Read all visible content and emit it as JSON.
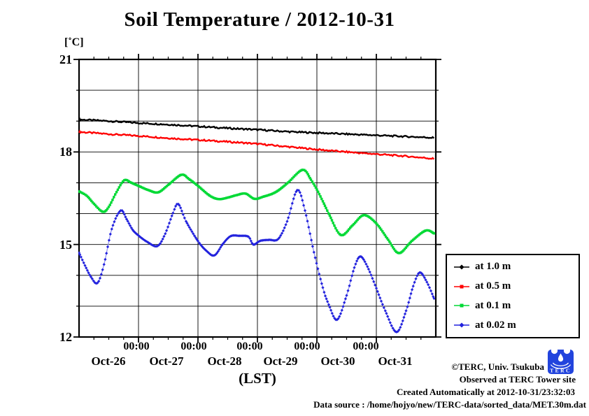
{
  "title": "Soil Temperature / 2012-10-31",
  "y_axis_unit": "[˚C]",
  "x_axis_label": "(LST)",
  "axes": {
    "y_ticks": [
      "21",
      "18",
      "15",
      "12"
    ],
    "x_time_ticks": [
      "00:00",
      "00:00",
      "00:00",
      "00:00",
      "00:00"
    ],
    "x_date_ticks": [
      "Oct-26",
      "Oct-27",
      "Oct-28",
      "Oct-29",
      "Oct-30",
      "Oct-31"
    ]
  },
  "legend": {
    "items": [
      {
        "label": "at 1.0 m",
        "color": "#000000",
        "marker": "diamond"
      },
      {
        "label": "at 0.5 m",
        "color": "#ff0000",
        "marker": "square"
      },
      {
        "label": "at 0.1 m",
        "color": "#00d935",
        "marker": "square"
      },
      {
        "label": "at 0.02 m",
        "color": "#2222dd",
        "marker": "diamond"
      }
    ]
  },
  "footer": {
    "copyright": "©TERC, Univ. Tsukuba",
    "observed": "Observed at TERC Tower site",
    "created": "Created Automatically at 2012-10-31/23:32:03",
    "datasource": "Data source : /home/hojyo/new/TERC-data/sorted_data/MET.30m.dat"
  },
  "logo": {
    "text": "TERC",
    "color": "#2244dd"
  },
  "chart_data": {
    "type": "line",
    "title": "Soil Temperature / 2012-10-31",
    "xlabel": "(LST)",
    "ylabel": "[˚C]",
    "x_unit": "days since 2012-10-26 00:00 LST",
    "xlim": [
      0,
      6
    ],
    "ylim": [
      12,
      21
    ],
    "y_major_ticks": [
      12,
      15,
      18,
      21
    ],
    "y_gridline_step_degC": 1,
    "x_gridlines_at_midnights": [
      1,
      2,
      3,
      4,
      5
    ],
    "x_minor_tick_hours": 6,
    "grid": true,
    "legend_position": "right-outside",
    "series": [
      {
        "name": "at 1.0 m",
        "color": "#000000",
        "marker": "diamond",
        "line": "thick",
        "points": [
          [
            0,
            19.05
          ],
          [
            0.5,
            19.0
          ],
          [
            1,
            18.94
          ],
          [
            1.5,
            18.89
          ],
          [
            2,
            18.83
          ],
          [
            2.5,
            18.77
          ],
          [
            3,
            18.72
          ],
          [
            3.5,
            18.66
          ],
          [
            4,
            18.62
          ],
          [
            4.5,
            18.58
          ],
          [
            5,
            18.54
          ],
          [
            5.5,
            18.5
          ],
          [
            5.97,
            18.46
          ]
        ]
      },
      {
        "name": "at 0.5 m",
        "color": "#ff0000",
        "marker": "square",
        "line": "thick",
        "points": [
          [
            0,
            18.65
          ],
          [
            0.5,
            18.58
          ],
          [
            1,
            18.52
          ],
          [
            1.5,
            18.45
          ],
          [
            2,
            18.39
          ],
          [
            2.5,
            18.33
          ],
          [
            3,
            18.26
          ],
          [
            3.5,
            18.17
          ],
          [
            4,
            18.08
          ],
          [
            4.5,
            18.0
          ],
          [
            5,
            17.93
          ],
          [
            5.5,
            17.86
          ],
          [
            5.97,
            17.78
          ]
        ]
      },
      {
        "name": "at 0.1 m",
        "color": "#00d935",
        "marker": "square",
        "line": "squares",
        "points": [
          [
            0,
            16.72
          ],
          [
            0.13,
            16.58
          ],
          [
            0.25,
            16.32
          ],
          [
            0.4,
            16.06
          ],
          [
            0.5,
            16.22
          ],
          [
            0.63,
            16.7
          ],
          [
            0.76,
            17.08
          ],
          [
            0.88,
            17.0
          ],
          [
            1.0,
            16.9
          ],
          [
            1.17,
            16.76
          ],
          [
            1.33,
            16.69
          ],
          [
            1.5,
            16.93
          ],
          [
            1.72,
            17.26
          ],
          [
            1.85,
            17.12
          ],
          [
            2.0,
            16.9
          ],
          [
            2.2,
            16.58
          ],
          [
            2.35,
            16.47
          ],
          [
            2.5,
            16.52
          ],
          [
            2.65,
            16.6
          ],
          [
            2.8,
            16.65
          ],
          [
            2.95,
            16.48
          ],
          [
            3.1,
            16.55
          ],
          [
            3.3,
            16.69
          ],
          [
            3.5,
            16.98
          ],
          [
            3.76,
            17.42
          ],
          [
            3.9,
            17.1
          ],
          [
            4.0,
            16.78
          ],
          [
            4.1,
            16.4
          ],
          [
            4.2,
            16.0
          ],
          [
            4.4,
            15.31
          ],
          [
            4.6,
            15.62
          ],
          [
            4.79,
            15.95
          ],
          [
            5.0,
            15.68
          ],
          [
            5.2,
            15.15
          ],
          [
            5.38,
            14.72
          ],
          [
            5.6,
            15.12
          ],
          [
            5.83,
            15.45
          ],
          [
            5.97,
            15.36
          ]
        ]
      },
      {
        "name": "at 0.02 m",
        "color": "#2222dd",
        "marker": "diamond",
        "line": "thin-light",
        "line_color": "#9393f0",
        "points": [
          [
            0,
            14.73
          ],
          [
            0.1,
            14.32
          ],
          [
            0.2,
            13.95
          ],
          [
            0.31,
            13.75
          ],
          [
            0.42,
            14.35
          ],
          [
            0.55,
            15.5
          ],
          [
            0.7,
            16.1
          ],
          [
            0.8,
            15.82
          ],
          [
            0.9,
            15.48
          ],
          [
            1.0,
            15.29
          ],
          [
            1.15,
            15.08
          ],
          [
            1.32,
            14.95
          ],
          [
            1.45,
            15.35
          ],
          [
            1.58,
            16.02
          ],
          [
            1.67,
            16.31
          ],
          [
            1.8,
            15.75
          ],
          [
            2.0,
            15.11
          ],
          [
            2.15,
            14.78
          ],
          [
            2.28,
            14.65
          ],
          [
            2.42,
            15.02
          ],
          [
            2.55,
            15.27
          ],
          [
            2.7,
            15.28
          ],
          [
            2.85,
            15.25
          ],
          [
            2.93,
            15.0
          ],
          [
            3.05,
            15.12
          ],
          [
            3.2,
            15.15
          ],
          [
            3.35,
            15.18
          ],
          [
            3.5,
            15.75
          ],
          [
            3.67,
            16.76
          ],
          [
            3.8,
            16.1
          ],
          [
            3.95,
            14.75
          ],
          [
            4.1,
            13.6
          ],
          [
            4.2,
            13.05
          ],
          [
            4.34,
            12.56
          ],
          [
            4.5,
            13.35
          ],
          [
            4.63,
            14.25
          ],
          [
            4.73,
            14.61
          ],
          [
            4.85,
            14.28
          ],
          [
            5.0,
            13.58
          ],
          [
            5.15,
            12.85
          ],
          [
            5.34,
            12.16
          ],
          [
            5.5,
            12.85
          ],
          [
            5.62,
            13.65
          ],
          [
            5.73,
            14.09
          ],
          [
            5.85,
            13.78
          ],
          [
            5.97,
            13.25
          ]
        ]
      }
    ]
  }
}
